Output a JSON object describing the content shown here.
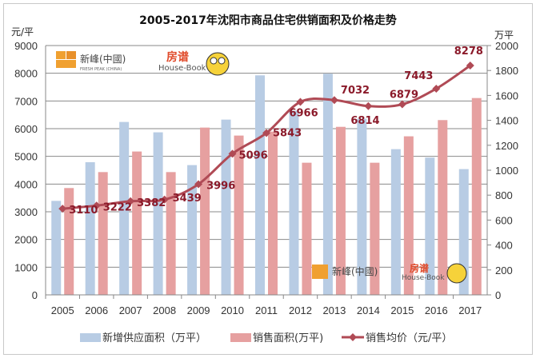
{
  "chart_data": {
    "type": "bar+line",
    "title": "2005-2017年沈阳市商品住宅供销面积及价格走势",
    "ylabel_left": "元/平",
    "ylabel_right": "万平",
    "ylim_left": [
      0,
      9000
    ],
    "ylim_right": [
      0,
      2000
    ],
    "yticks_left": [
      "0",
      "1000",
      "2000",
      "3000",
      "4000",
      "5000",
      "6000",
      "7000",
      "8000",
      "9000"
    ],
    "yticks_right": [
      "0",
      "200",
      "400",
      "600",
      "800",
      "1000",
      "1200",
      "1400",
      "1600",
      "1800",
      "2000"
    ],
    "grid": true,
    "legend_position": "bottom",
    "categories": [
      "2005",
      "2006",
      "2007",
      "2008",
      "2009",
      "2010",
      "2011",
      "2012",
      "2013",
      "2014",
      "2015",
      "2016",
      "2017"
    ],
    "series": [
      {
        "name": "新增供应面积（万平）",
        "type": "bar",
        "axis": "right",
        "color": "#b8cce4",
        "values": [
          754,
          1064,
          1387,
          1304,
          1041,
          1406,
          1761,
          1477,
          1774,
          1413,
          1169,
          1101,
          1009
        ]
      },
      {
        "name": "销售面积(万平)",
        "type": "bar",
        "axis": "right",
        "color": "#e6a0a0",
        "values": [
          857,
          985,
          1150,
          985,
          1342,
          1278,
          1310,
          1060,
          1348,
          1060,
          1272,
          1402,
          1579
        ]
      },
      {
        "name": "销售均价（元/平）",
        "type": "line",
        "axis": "left",
        "color": "#b04a55",
        "values": [
          3110,
          3222,
          3382,
          3439,
          3996,
          5096,
          5843,
          6966,
          7032,
          6814,
          6879,
          7443,
          8278
        ],
        "labels": [
          "3110",
          "3222",
          "3382",
          "3439",
          "3996",
          "5096",
          "5843",
          "6966",
          "7032",
          "6814",
          "6879",
          "7443",
          "8278"
        ]
      }
    ]
  },
  "watermarks": {
    "logo1_cn": "新峰(中國)",
    "logo1_en": "FRESH PEAK (CHINA)",
    "logo2_cn": "房谱",
    "logo2_en": "House-Book"
  }
}
